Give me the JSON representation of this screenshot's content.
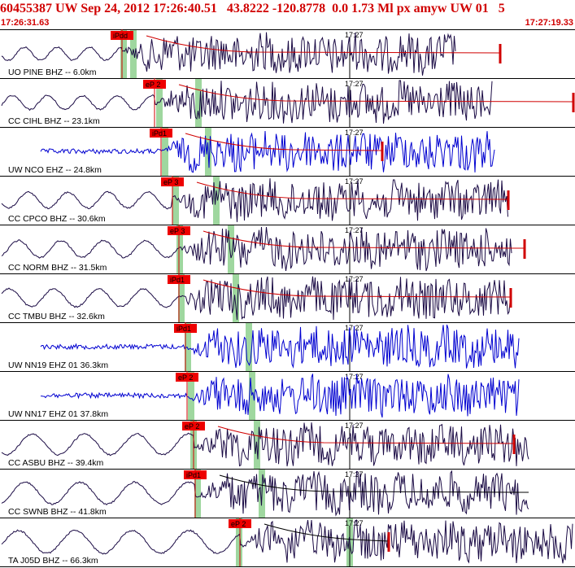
{
  "header": {
    "title": "60455387 UW Sep 24, 2012 17:26:40.51   43.8222 -120.8778  0.0 1.73 Ml px amyw UW 01   5",
    "start_time": "17:26:31.63",
    "end_time": "17:27:19.33",
    "minute_tick_label": "17:27"
  },
  "colors": {
    "title": "#d00000",
    "pick_box": "#ee0000",
    "pick_line": "#d00000",
    "window_band": "#9fd79f",
    "trace_bhz": "#1a0a44",
    "trace_ehz": "#0000d0",
    "frame": "#000000"
  },
  "traces": [
    {
      "label": "UO PINE BHZ -- 6.0km",
      "pick": "iPdd",
      "kind": "bhz"
    },
    {
      "label": "CC CIHL BHZ -- 23.1km",
      "pick": "eP 2",
      "kind": "bhz"
    },
    {
      "label": "UW NCO EHZ -- 24.8km",
      "pick": "iPd1",
      "kind": "ehz"
    },
    {
      "label": "CC CPCO BHZ -- 30.6km",
      "pick": "eP 3",
      "kind": "bhz"
    },
    {
      "label": "CC NORM BHZ -- 31.5km",
      "pick": "eP 3",
      "kind": "bhz"
    },
    {
      "label": "CC TMBU BHZ -- 32.6km",
      "pick": "iPd1",
      "kind": "bhz"
    },
    {
      "label": "UW NN19 EHZ 01 36.3km",
      "pick": "iPd1",
      "kind": "ehz"
    },
    {
      "label": "UW NN17 EHZ 01 37.8km",
      "pick": "eP 2",
      "kind": "ehz"
    },
    {
      "label": "CC ASBU BHZ -- 39.4km",
      "pick": "eP 2",
      "kind": "bhz"
    },
    {
      "label": "CC SWNB BHZ -- 41.8km",
      "pick": "iPd1",
      "kind": "bhz"
    },
    {
      "label": "TA J05D BHZ -- 66.3km",
      "pick": "eP 2",
      "kind": "bhz"
    }
  ]
}
